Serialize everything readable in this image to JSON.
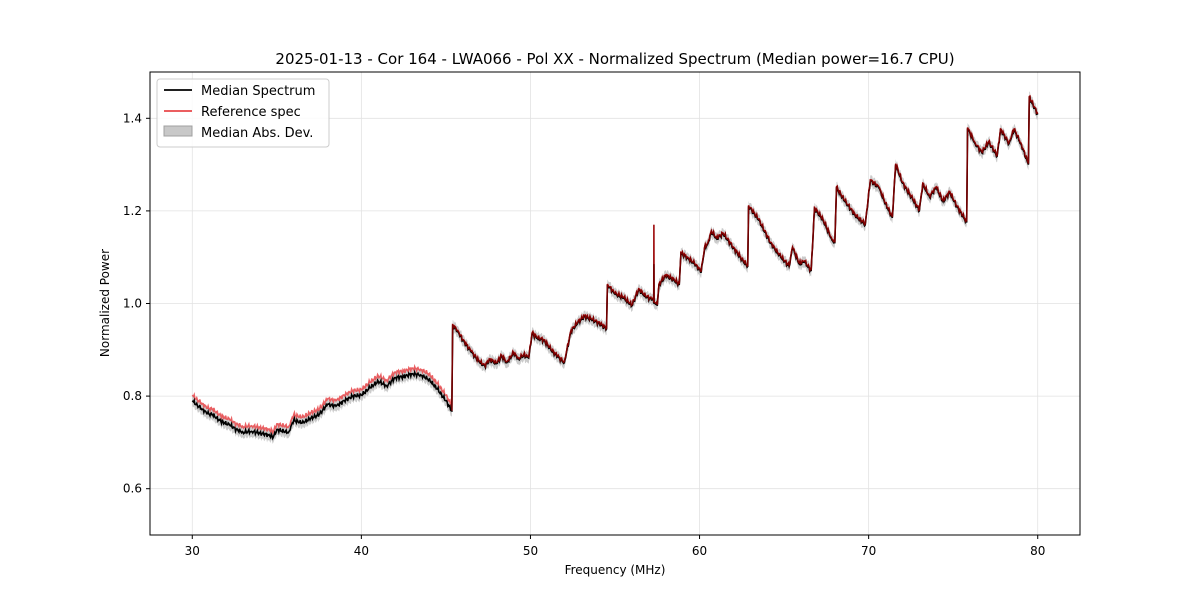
{
  "chart_data": {
    "type": "line",
    "title": "2025-01-13 - Cor 164 - LWA066 - Pol XX - Normalized Spectrum (Median power=16.7 CPU)",
    "xlabel": "Frequency (MHz)",
    "ylabel": "Normalized Power",
    "xlim": [
      27.5,
      82.5
    ],
    "ylim": [
      0.5,
      1.5
    ],
    "xticks": [
      30,
      40,
      50,
      60,
      70,
      80
    ],
    "yticks": [
      0.6,
      0.8,
      1.0,
      1.2,
      1.4
    ],
    "grid": true,
    "legend_position": "top-left",
    "legend": [
      {
        "label": "Median Spectrum",
        "kind": "line",
        "color": "#000000"
      },
      {
        "label": "Reference spec",
        "kind": "line",
        "color": "#e8474a"
      },
      {
        "label": "Median Abs. Dev.",
        "kind": "band",
        "color": "#c8c8c8"
      }
    ],
    "mad_width": 0.012,
    "reference_offset_low": 0.012,
    "reference_spike": {
      "x": 57.3,
      "y": 1.17
    },
    "median_spike": {
      "x": 57.3,
      "y": 1.085
    },
    "series": [
      {
        "name": "Median Spectrum",
        "color": "#000000",
        "points": [
          [
            30.0,
            0.79
          ],
          [
            30.3,
            0.78
          ],
          [
            30.6,
            0.772
          ],
          [
            30.9,
            0.762
          ],
          [
            31.2,
            0.76
          ],
          [
            31.6,
            0.748
          ],
          [
            31.9,
            0.742
          ],
          [
            32.2,
            0.738
          ],
          [
            32.6,
            0.728
          ],
          [
            33.0,
            0.722
          ],
          [
            33.5,
            0.724
          ],
          [
            34.0,
            0.72
          ],
          [
            34.5,
            0.716
          ],
          [
            34.8,
            0.712
          ],
          [
            35.0,
            0.728
          ],
          [
            35.4,
            0.724
          ],
          [
            35.7,
            0.722
          ],
          [
            36.0,
            0.748
          ],
          [
            36.5,
            0.742
          ],
          [
            37.0,
            0.752
          ],
          [
            37.5,
            0.76
          ],
          [
            38.0,
            0.782
          ],
          [
            38.5,
            0.778
          ],
          [
            39.0,
            0.79
          ],
          [
            39.5,
            0.8
          ],
          [
            40.0,
            0.802
          ],
          [
            40.5,
            0.818
          ],
          [
            41.0,
            0.832
          ],
          [
            41.5,
            0.822
          ],
          [
            42.0,
            0.84
          ],
          [
            42.5,
            0.842
          ],
          [
            43.0,
            0.848
          ],
          [
            43.5,
            0.846
          ],
          [
            44.0,
            0.836
          ],
          [
            44.5,
            0.815
          ],
          [
            45.0,
            0.79
          ],
          [
            45.35,
            0.768
          ],
          [
            45.4,
            0.952
          ],
          [
            45.7,
            0.94
          ],
          [
            46.0,
            0.92
          ],
          [
            46.5,
            0.895
          ],
          [
            47.0,
            0.872
          ],
          [
            47.3,
            0.865
          ],
          [
            47.6,
            0.878
          ],
          [
            48.0,
            0.87
          ],
          [
            48.3,
            0.886
          ],
          [
            48.6,
            0.872
          ],
          [
            49.0,
            0.892
          ],
          [
            49.3,
            0.88
          ],
          [
            49.6,
            0.888
          ],
          [
            49.9,
            0.882
          ],
          [
            50.1,
            0.935
          ],
          [
            50.4,
            0.925
          ],
          [
            50.8,
            0.92
          ],
          [
            51.2,
            0.9
          ],
          [
            51.6,
            0.885
          ],
          [
            52.0,
            0.872
          ],
          [
            52.4,
            0.94
          ],
          [
            52.8,
            0.958
          ],
          [
            53.2,
            0.972
          ],
          [
            53.6,
            0.965
          ],
          [
            54.0,
            0.958
          ],
          [
            54.5,
            0.945
          ],
          [
            54.55,
            1.04
          ],
          [
            55.0,
            1.02
          ],
          [
            55.5,
            1.012
          ],
          [
            56.0,
            0.995
          ],
          [
            56.4,
            1.03
          ],
          [
            56.8,
            1.015
          ],
          [
            57.2,
            1.008
          ],
          [
            57.5,
            0.995
          ],
          [
            57.6,
            1.04
          ],
          [
            58.0,
            1.06
          ],
          [
            58.5,
            1.05
          ],
          [
            58.8,
            1.04
          ],
          [
            58.9,
            1.108
          ],
          [
            59.3,
            1.098
          ],
          [
            59.7,
            1.085
          ],
          [
            60.1,
            1.068
          ],
          [
            60.3,
            1.12
          ],
          [
            60.5,
            1.13
          ],
          [
            60.7,
            1.155
          ],
          [
            61.0,
            1.14
          ],
          [
            61.4,
            1.15
          ],
          [
            62.0,
            1.12
          ],
          [
            62.5,
            1.095
          ],
          [
            62.85,
            1.08
          ],
          [
            62.9,
            1.21
          ],
          [
            63.5,
            1.18
          ],
          [
            64.2,
            1.13
          ],
          [
            64.8,
            1.1
          ],
          [
            65.3,
            1.08
          ],
          [
            65.5,
            1.12
          ],
          [
            65.9,
            1.085
          ],
          [
            66.2,
            1.09
          ],
          [
            66.6,
            1.07
          ],
          [
            66.8,
            1.205
          ],
          [
            67.3,
            1.18
          ],
          [
            67.8,
            1.14
          ],
          [
            68.0,
            1.13
          ],
          [
            68.1,
            1.25
          ],
          [
            68.6,
            1.22
          ],
          [
            69.2,
            1.19
          ],
          [
            69.8,
            1.17
          ],
          [
            70.1,
            1.265
          ],
          [
            70.6,
            1.25
          ],
          [
            71.0,
            1.215
          ],
          [
            71.4,
            1.185
          ],
          [
            71.6,
            1.3
          ],
          [
            72.0,
            1.26
          ],
          [
            72.6,
            1.225
          ],
          [
            73.0,
            1.2
          ],
          [
            73.2,
            1.258
          ],
          [
            73.6,
            1.23
          ],
          [
            74.0,
            1.25
          ],
          [
            74.4,
            1.22
          ],
          [
            74.8,
            1.24
          ],
          [
            75.2,
            1.21
          ],
          [
            75.8,
            1.175
          ],
          [
            75.85,
            1.378
          ],
          [
            76.3,
            1.345
          ],
          [
            76.7,
            1.325
          ],
          [
            77.1,
            1.348
          ],
          [
            77.6,
            1.318
          ],
          [
            77.8,
            1.375
          ],
          [
            78.3,
            1.345
          ],
          [
            78.6,
            1.375
          ],
          [
            79.0,
            1.345
          ],
          [
            79.45,
            1.3
          ],
          [
            79.5,
            1.445
          ],
          [
            80.0,
            1.408
          ]
        ]
      }
    ]
  }
}
